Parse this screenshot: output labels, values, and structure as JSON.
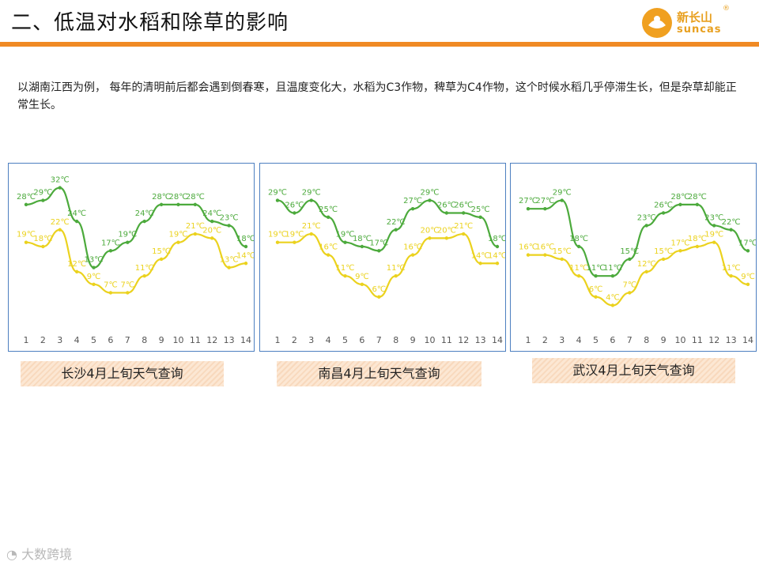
{
  "title": "二、低温对水稻和除草的影响",
  "logo": {
    "cn": "新长山",
    "en": "suncas",
    "reg": "®"
  },
  "description": "以湖南江西为例， 每年的清明前后都会遇到倒春寒，且温度变化大，水稻为C3作物，稗草为C4作物，这个时候水稻几乎停滞生长，但是杂草却能正常生长。",
  "watermark": "大数跨境",
  "colors": {
    "high": "#4caa3c",
    "low": "#ebd21e",
    "accent": "#f08a24",
    "border": "#4d7fc0"
  },
  "chart_data": [
    {
      "type": "line",
      "title": "长沙4月上旬天气查询",
      "categories": [
        "1",
        "2",
        "3",
        "4",
        "5",
        "6",
        "7",
        "8",
        "9",
        "10",
        "11",
        "12",
        "13",
        "14"
      ],
      "series": [
        {
          "name": "high",
          "values": [
            28,
            29,
            32,
            24,
            13,
            17,
            19,
            24,
            28,
            28,
            28,
            24,
            23,
            18
          ],
          "labels": [
            "28℃",
            "29℃",
            "32℃",
            "24℃",
            "13℃",
            "17℃",
            "19℃",
            "24℃",
            "28℃",
            "28℃",
            "28℃",
            "24℃",
            "23℃",
            "18℃"
          ]
        },
        {
          "name": "low",
          "values": [
            19,
            18,
            22,
            12,
            9,
            7,
            7,
            11,
            15,
            19,
            21,
            20,
            13,
            14
          ],
          "labels": [
            "19℃",
            "18℃",
            "22℃",
            "12℃",
            "9℃",
            "7℃",
            "7℃",
            "11℃",
            "15℃",
            "19℃",
            "21℃",
            "20℃",
            "13℃",
            "14℃"
          ]
        }
      ]
    },
    {
      "type": "line",
      "title": "南昌4月上旬天气查询",
      "categories": [
        "1",
        "2",
        "3",
        "4",
        "5",
        "6",
        "7",
        "8",
        "9",
        "10",
        "11",
        "12",
        "13",
        "14"
      ],
      "series": [
        {
          "name": "high",
          "values": [
            29,
            26,
            29,
            25,
            19,
            18,
            17,
            22,
            27,
            29,
            26,
            26,
            25,
            18
          ],
          "labels": [
            "29℃",
            "26℃",
            "29℃",
            "25℃",
            "19℃",
            "18℃",
            "17℃",
            "22℃",
            "27℃",
            "29℃",
            "26℃",
            "26℃",
            "25℃",
            "18℃"
          ]
        },
        {
          "name": "low",
          "values": [
            19,
            19,
            21,
            16,
            11,
            9,
            6,
            11,
            16,
            20,
            20,
            21,
            14,
            14
          ],
          "labels": [
            "19℃",
            "19℃",
            "21℃",
            "16℃",
            "11℃",
            "9℃",
            "6℃",
            "11℃",
            "16℃",
            "20℃",
            "20℃",
            "21℃",
            "14℃",
            "14℃"
          ]
        }
      ]
    },
    {
      "type": "line",
      "title": "武汉4月上旬天气查询",
      "categories": [
        "1",
        "2",
        "3",
        "4",
        "5",
        "6",
        "7",
        "8",
        "9",
        "10",
        "11",
        "12",
        "13",
        "14"
      ],
      "series": [
        {
          "name": "high",
          "values": [
            27,
            27,
            29,
            18,
            11,
            11,
            15,
            23,
            26,
            28,
            28,
            23,
            22,
            17
          ],
          "labels": [
            "27℃",
            "27℃",
            "29℃",
            "18℃",
            "11℃",
            "11℃",
            "15℃",
            "23℃",
            "26℃",
            "28℃",
            "28℃",
            "23℃",
            "22℃",
            "17℃"
          ]
        },
        {
          "name": "low",
          "values": [
            16,
            16,
            15,
            11,
            6,
            4,
            7,
            12,
            15,
            17,
            18,
            19,
            11,
            9
          ],
          "labels": [
            "16℃",
            "16℃",
            "15℃",
            "11℃",
            "6℃",
            "4℃",
            "7℃",
            "12℃",
            "15℃",
            "17℃",
            "18℃",
            "19℃",
            "11℃",
            "9℃"
          ]
        }
      ]
    }
  ]
}
